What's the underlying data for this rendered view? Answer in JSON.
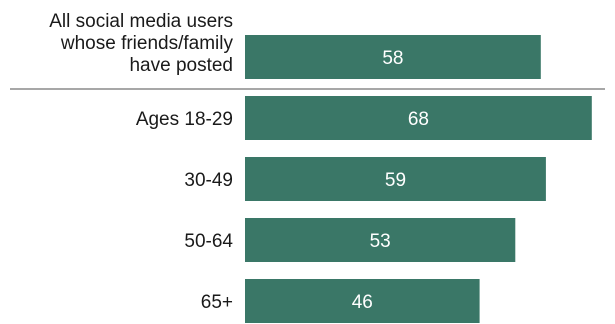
{
  "chart_data": {
    "type": "bar",
    "orientation": "horizontal",
    "categories": [
      "All social media users whose friends/family have posted",
      "Ages 18-29",
      "30-49",
      "50-64",
      "65+"
    ],
    "category_lines": [
      [
        "All social media users",
        "whose friends/family",
        "have posted"
      ],
      [
        "Ages 18-29"
      ],
      [
        "30-49"
      ],
      [
        "50-64"
      ],
      [
        "65+"
      ]
    ],
    "values": [
      58,
      68,
      59,
      53,
      46
    ],
    "data_labels": [
      "58",
      "68",
      "59",
      "53",
      "46"
    ],
    "bar_color": "#3a7767",
    "divider_after_index": 0,
    "xlim": [
      0,
      72
    ],
    "grid": false,
    "legend": "none"
  }
}
